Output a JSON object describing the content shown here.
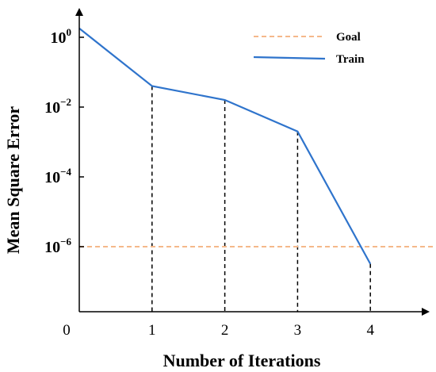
{
  "chart_data": {
    "type": "line",
    "xlabel": "Number of Iterations",
    "ylabel": "Mean Square Error",
    "y_scale": "log",
    "xlim": [
      0,
      5
    ],
    "ylim": [
      2e-08,
      10
    ],
    "x_ticks": [
      0,
      1,
      2,
      3,
      4
    ],
    "y_ticks": [
      {
        "value": 1,
        "base": "10",
        "exp": "0"
      },
      {
        "value": 0.01,
        "base": "10",
        "exp": "−2"
      },
      {
        "value": 0.0001,
        "base": "10",
        "exp": "−4"
      },
      {
        "value": 1e-06,
        "base": "10",
        "exp": "−6"
      }
    ],
    "grid": false,
    "legend_position": "top-right",
    "series": [
      {
        "name": "Goal",
        "style": "dashed",
        "color": "#f5b88a",
        "x": [
          0,
          5
        ],
        "values": [
          1e-06,
          1e-06
        ]
      },
      {
        "name": "Train",
        "style": "solid",
        "color": "#2f74cc",
        "x": [
          0,
          1,
          2,
          3,
          4
        ],
        "values": [
          1.8,
          0.04,
          0.016,
          0.002,
          3.2e-07
        ]
      }
    ],
    "annotations": {
      "drop_lines_at_x": [
        1,
        2,
        3,
        4
      ],
      "style": "dashed",
      "color": "#000000"
    }
  }
}
